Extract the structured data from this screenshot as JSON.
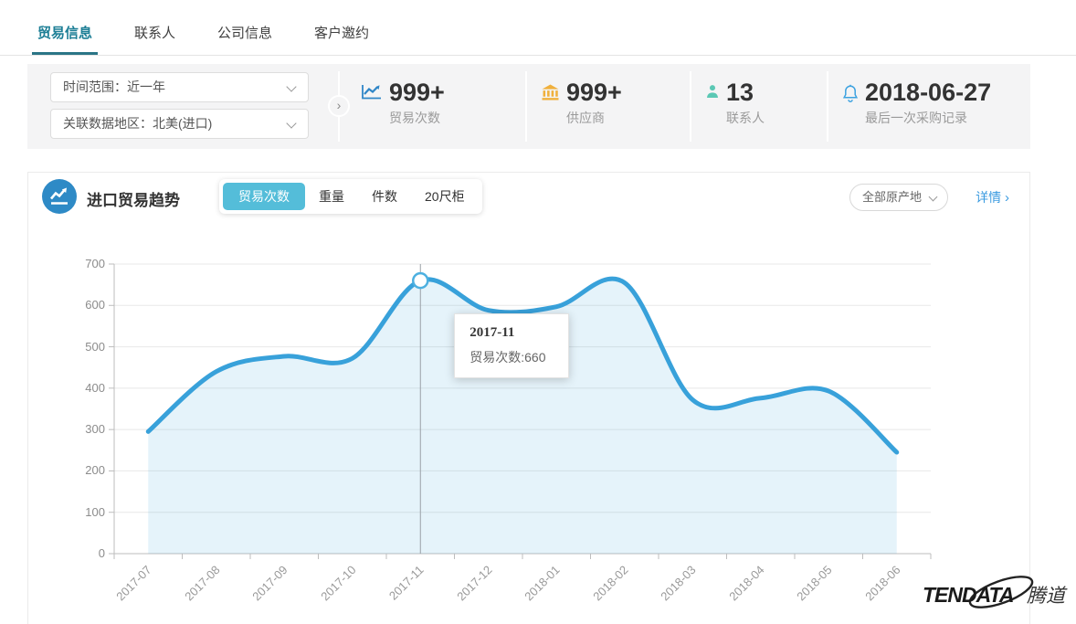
{
  "page_tabs": [
    {
      "label": "贸易信息",
      "active": true
    },
    {
      "label": "联系人",
      "active": false
    },
    {
      "label": "公司信息",
      "active": false
    },
    {
      "label": "客户邀约",
      "active": false
    }
  ],
  "filters": {
    "time_range": "时间范围：近一年",
    "region": "关联数据地区：北美(进口)"
  },
  "stats": [
    {
      "icon": "trend-chart-icon",
      "value": "999+",
      "label": "贸易次数"
    },
    {
      "icon": "bank-icon",
      "value": "999+",
      "label": "供应商"
    },
    {
      "icon": "person-icon",
      "value": "13",
      "label": "联系人"
    },
    {
      "icon": "bell-icon",
      "value": "2018-06-27",
      "label": "最后一次采购记录"
    }
  ],
  "trend_section": {
    "title": "进口贸易趋势",
    "metric_tabs": [
      {
        "label": "贸易次数",
        "active": true
      },
      {
        "label": "重量",
        "active": false
      },
      {
        "label": "件数",
        "active": false
      },
      {
        "label": "20尺柜",
        "active": false
      }
    ],
    "origin_filter_label": "全部原产地",
    "detail_link_label": "详情"
  },
  "chart_data": {
    "type": "area",
    "title": "进口贸易趋势 - 贸易次数",
    "x": [
      "2017-07",
      "2017-08",
      "2017-09",
      "2017-10",
      "2017-11",
      "2017-12",
      "2018-01",
      "2018-02",
      "2018-03",
      "2018-04",
      "2018-05",
      "2018-06"
    ],
    "series": [
      {
        "name": "贸易次数",
        "values": [
          295,
          440,
          477,
          472,
          660,
          588,
          597,
          655,
          372,
          376,
          393,
          245
        ]
      }
    ],
    "ylim": [
      0,
      700
    ],
    "yticks": [
      0,
      100,
      200,
      300,
      400,
      500,
      600,
      700
    ],
    "grid": true,
    "legend": false,
    "smooth": true,
    "line_color": "#38a1da",
    "fill_color": "rgba(56,161,218,0.13)",
    "highlight": {
      "index": 4,
      "x": "2017-11",
      "value": 660
    },
    "tooltip": {
      "title": "2017-11",
      "text": "贸易次数:660"
    }
  },
  "logo": {
    "brand": "TENDATA",
    "brand_cn": "腾道"
  },
  "colors": {
    "accent_teal": "#1e7f96",
    "pill_active": "#54bdd9",
    "link_blue": "#3b9be0",
    "stat_icon_trend": "#2f86c7",
    "stat_icon_bank": "#f0b03c",
    "stat_icon_person": "#5bc8b4",
    "stat_icon_bell": "#3da2e0"
  }
}
